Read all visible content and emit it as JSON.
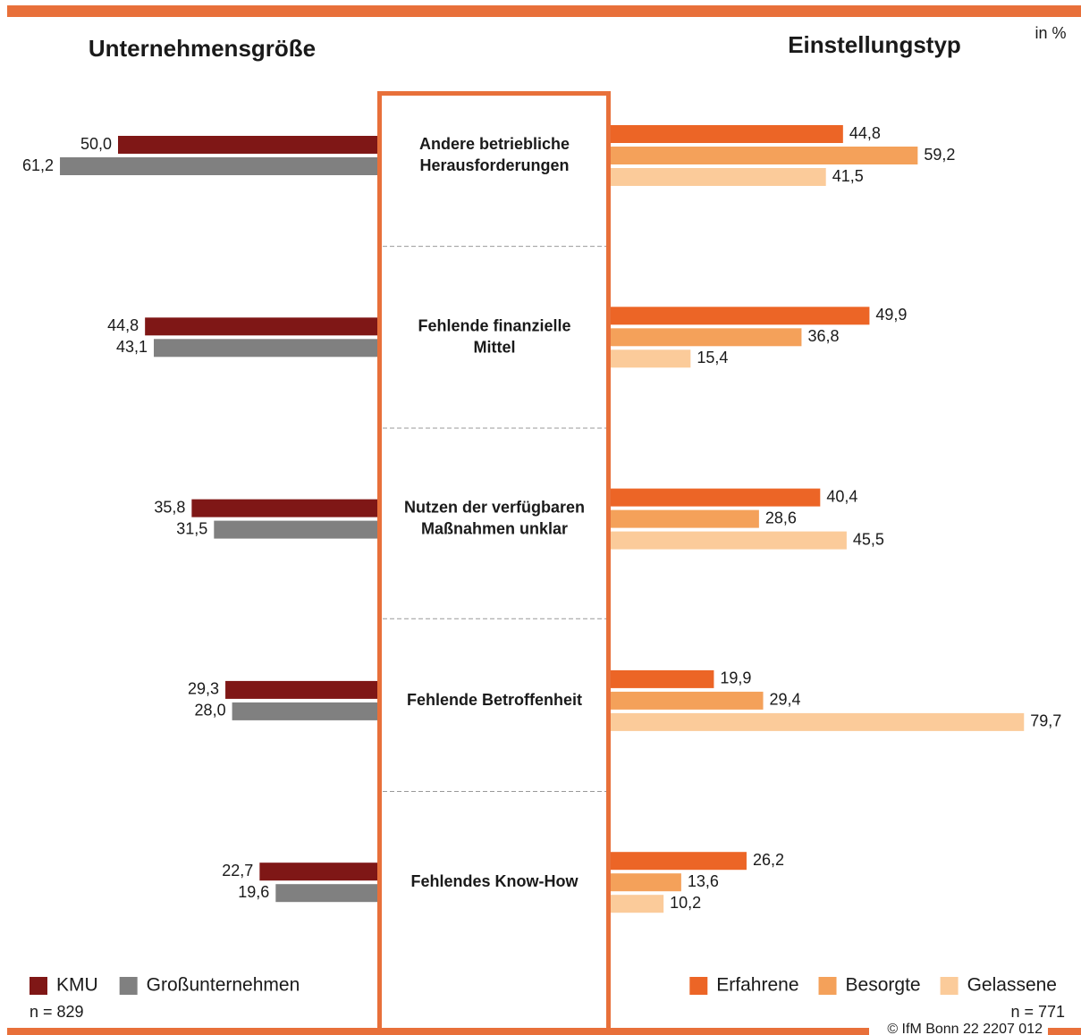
{
  "unit": "in %",
  "copyright": "© IfM Bonn 22 2207 012",
  "chart_data": [
    {
      "type": "bar",
      "orientation": "horizontal",
      "direction": "left",
      "title": "Unternehmensgröße",
      "note": "n = 829",
      "categories": [
        [
          "Andere betriebliche",
          "Herausforderungen"
        ],
        [
          "Fehlende finanzielle",
          "Mittel"
        ],
        [
          "Nutzen der verfügbaren",
          "Maßnahmen unklar"
        ],
        [
          "Fehlende Betroffenheit"
        ],
        [
          "Fehlendes Know-How"
        ]
      ],
      "legend": "bottom-left",
      "series": [
        {
          "name": "KMU",
          "color": "#7f1716",
          "values": [
            50.0,
            44.8,
            35.8,
            29.3,
            22.7
          ],
          "value_labels": [
            "50,0",
            "44,8",
            "35,8",
            "29,3",
            "22,7"
          ]
        },
        {
          "name": "Großunternehmen",
          "color": "#808080",
          "values": [
            61.2,
            43.1,
            31.5,
            28.0,
            19.6
          ],
          "value_labels": [
            "61,2",
            "43,1",
            "31,5",
            "28,0",
            "19,6"
          ]
        }
      ]
    },
    {
      "type": "bar",
      "orientation": "horizontal",
      "direction": "right",
      "title": "Einstellungstyp",
      "note": "n = 771",
      "legend": "bottom-right",
      "series": [
        {
          "name": "Erfahrene",
          "color": "#ec6526",
          "values": [
            44.8,
            49.9,
            40.4,
            19.9,
            26.2
          ],
          "value_labels": [
            "44,8",
            "49,9",
            "40,4",
            "19,9",
            "26,2"
          ]
        },
        {
          "name": "Besorgte",
          "color": "#f4a15a",
          "values": [
            59.2,
            36.8,
            28.6,
            29.4,
            13.6
          ],
          "value_labels": [
            "59,2",
            "36,8",
            "28,6",
            "29,4",
            "13,6"
          ]
        },
        {
          "name": "Gelassene",
          "color": "#fbcb9a",
          "values": [
            41.5,
            15.4,
            45.5,
            79.7,
            10.2
          ],
          "value_labels": [
            "41,5",
            "15,4",
            "45,5",
            "79,7",
            "10,2"
          ]
        }
      ]
    }
  ]
}
